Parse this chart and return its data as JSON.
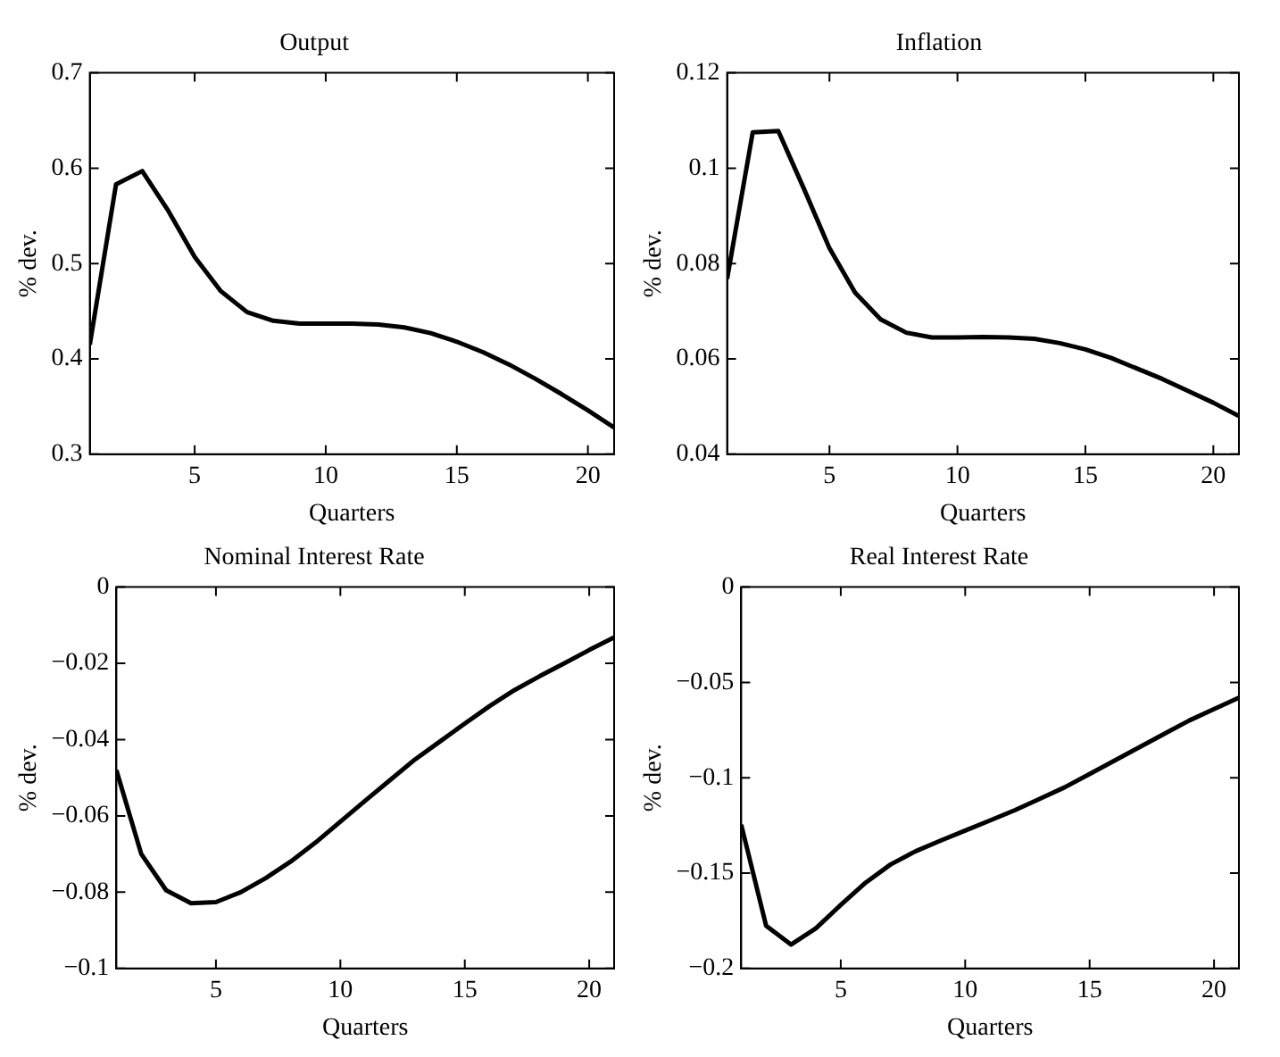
{
  "chart_data": [
    {
      "type": "line",
      "title": "Output",
      "xlabel": "Quarters",
      "ylabel": "% dev.",
      "x": [
        1,
        2,
        3,
        4,
        5,
        6,
        7,
        8,
        9,
        10,
        11,
        12,
        13,
        14,
        15,
        16,
        17,
        18,
        19,
        20,
        21
      ],
      "color": "#000000",
      "values": [
        0.415,
        0.583,
        0.597,
        0.555,
        0.507,
        0.471,
        0.449,
        0.44,
        0.437,
        0.437,
        0.437,
        0.436,
        0.433,
        0.427,
        0.418,
        0.407,
        0.394,
        0.379,
        0.363,
        0.346,
        0.328
      ],
      "xlim": [
        1,
        21
      ],
      "xticks": [
        5,
        10,
        15,
        20
      ],
      "ylim": [
        0.3,
        0.7
      ],
      "yticks": [
        0.3,
        0.4,
        0.5,
        0.6,
        0.7
      ]
    },
    {
      "type": "line",
      "title": "Inflation",
      "xlabel": "Quarters",
      "ylabel": "% dev.",
      "x": [
        1,
        2,
        3,
        4,
        5,
        6,
        7,
        8,
        9,
        10,
        11,
        12,
        13,
        14,
        15,
        16,
        17,
        18,
        19,
        20,
        21
      ],
      "color": "#000000",
      "values": [
        0.0768,
        0.1075,
        0.1078,
        0.0957,
        0.0832,
        0.0739,
        0.0683,
        0.0655,
        0.0645,
        0.0645,
        0.0646,
        0.0645,
        0.0642,
        0.0633,
        0.062,
        0.0602,
        0.058,
        0.0558,
        0.0533,
        0.0508,
        0.048
      ],
      "xlim": [
        1,
        21
      ],
      "xticks": [
        5,
        10,
        15,
        20
      ],
      "ylim": [
        0.04,
        0.12
      ],
      "yticks": [
        0.04,
        0.06,
        0.08,
        0.1,
        0.12
      ]
    },
    {
      "type": "line",
      "title": "Nominal Interest Rate",
      "xlabel": "Quarters",
      "ylabel": "% dev.",
      "x": [
        1,
        2,
        3,
        4,
        5,
        6,
        7,
        8,
        9,
        10,
        11,
        12,
        13,
        14,
        15,
        16,
        17,
        18,
        19,
        20,
        21
      ],
      "color": "#000000",
      "values": [
        -0.048,
        -0.07,
        -0.0795,
        -0.0829,
        -0.0826,
        -0.08,
        -0.0763,
        -0.072,
        -0.067,
        -0.0615,
        -0.056,
        -0.0506,
        -0.0452,
        -0.0405,
        -0.0358,
        -0.0312,
        -0.027,
        -0.0234,
        -0.02,
        -0.0165,
        -0.0132
      ],
      "xlim": [
        1,
        21
      ],
      "xticks": [
        5,
        10,
        15,
        20
      ],
      "ylim": [
        -0.1,
        0
      ],
      "yticks": [
        -0.1,
        -0.08,
        -0.06,
        -0.04,
        -0.02,
        0
      ]
    },
    {
      "type": "line",
      "title": "Real Interest Rate",
      "xlabel": "Quarters",
      "ylabel": "% dev.",
      "x": [
        1,
        2,
        3,
        4,
        5,
        6,
        7,
        8,
        9,
        10,
        11,
        12,
        13,
        14,
        15,
        16,
        17,
        18,
        19,
        20,
        21
      ],
      "color": "#000000",
      "values": [
        -0.1246,
        -0.1776,
        -0.1875,
        -0.179,
        -0.1667,
        -0.155,
        -0.1455,
        -0.1386,
        -0.133,
        -0.1277,
        -0.1224,
        -0.117,
        -0.111,
        -0.105,
        -0.098,
        -0.091,
        -0.084,
        -0.077,
        -0.07,
        -0.064,
        -0.058
      ],
      "xlim": [
        1,
        21
      ],
      "xticks": [
        5,
        10,
        15,
        20
      ],
      "ylim": [
        -0.2,
        0
      ],
      "yticks": [
        -0.2,
        -0.15,
        -0.1,
        -0.05,
        0
      ]
    }
  ]
}
